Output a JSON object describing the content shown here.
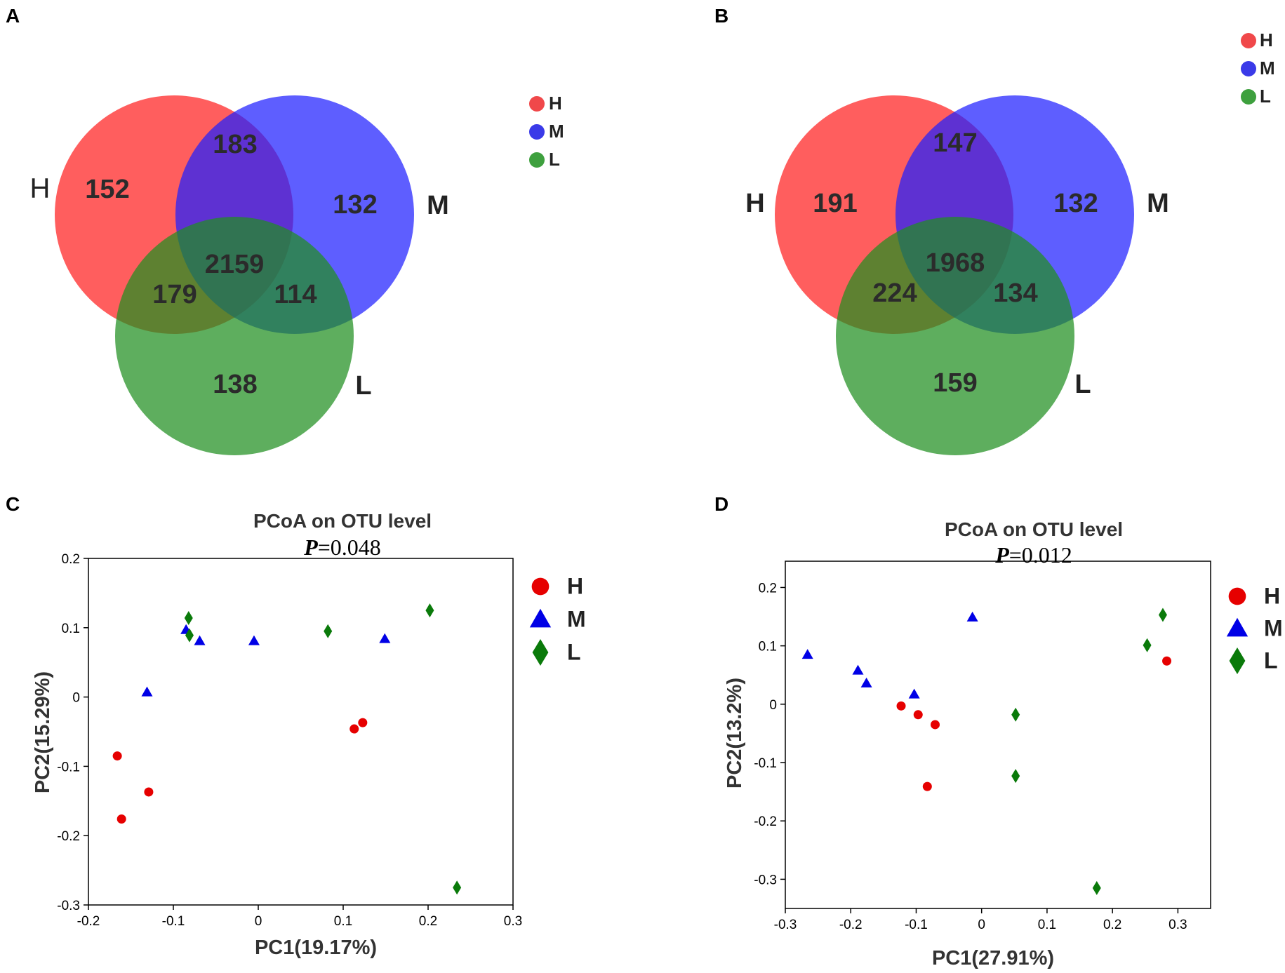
{
  "panels": {
    "A": {
      "letter": "A",
      "type": "venn",
      "set_labels": {
        "H": "H",
        "M": "M",
        "L": "L"
      },
      "regions": {
        "H_only": "152",
        "M_only": "132",
        "L_only": "138",
        "HM": "183",
        "HL": "179",
        "ML": "114",
        "HML": "2159"
      },
      "legend": [
        {
          "label": "H",
          "color": "#f0484a"
        },
        {
          "label": "M",
          "color": "#3a3ae8"
        },
        {
          "label": "L",
          "color": "#3ea03e"
        }
      ]
    },
    "B": {
      "letter": "B",
      "type": "venn",
      "set_labels": {
        "H": "H",
        "M": "M",
        "L": "L"
      },
      "regions": {
        "H_only": "191",
        "M_only": "132",
        "L_only": "159",
        "HM": "147",
        "HL": "224",
        "ML": "134",
        "HML": "1968"
      },
      "legend": [
        {
          "label": "H",
          "color": "#f0484a"
        },
        {
          "label": "M",
          "color": "#3a3ae8"
        },
        {
          "label": "L",
          "color": "#3ea03e"
        }
      ]
    }
  },
  "colors": {
    "H_circle": "#ff2020",
    "M_circle": "#2020ff",
    "L_circle": "#208f20",
    "H_point": "#e60000",
    "M_point": "#0000e6",
    "L_point": "#0a7a0a"
  },
  "chart_data": [
    {
      "letter": "C",
      "type": "scatter",
      "title": "PCoA on OTU level",
      "subtitle_italic": "P",
      "subtitle_rest": "=0.048",
      "xlabel": "PC1(19.17%)",
      "ylabel": "PC2(15.29%)",
      "xlim": [
        -0.2,
        0.3
      ],
      "ylim": [
        -0.3,
        0.2
      ],
      "xticks": [
        -0.2,
        -0.1,
        0,
        0.1,
        0.2,
        0.3
      ],
      "yticks": [
        -0.3,
        -0.2,
        -0.1,
        0,
        0.1,
        0.2
      ],
      "xtick_labels": [
        "-0.2",
        "-0.1",
        "0",
        "0.1",
        "0.2",
        "0.3"
      ],
      "ytick_labels": [
        "-0.3",
        "-0.2",
        "-0.1",
        "0",
        "0.1",
        "0.2"
      ],
      "legend_position": "right",
      "series": [
        {
          "name": "H",
          "marker": "circle",
          "points": [
            [
              -0.166,
              -0.085
            ],
            [
              -0.161,
              -0.176
            ],
            [
              -0.129,
              -0.137
            ],
            [
              0.113,
              -0.046
            ],
            [
              0.123,
              -0.037
            ]
          ]
        },
        {
          "name": "M",
          "marker": "triangle",
          "points": [
            [
              -0.131,
              0.007
            ],
            [
              -0.085,
              0.097
            ],
            [
              -0.069,
              0.081
            ],
            [
              -0.005,
              0.081
            ],
            [
              0.149,
              0.084
            ]
          ]
        },
        {
          "name": "L",
          "marker": "diamond",
          "points": [
            [
              -0.082,
              0.114
            ],
            [
              -0.081,
              0.089
            ],
            [
              0.082,
              0.095
            ],
            [
              0.202,
              0.125
            ],
            [
              0.234,
              -0.275
            ]
          ]
        }
      ]
    },
    {
      "letter": "D",
      "type": "scatter",
      "title": "PCoA on OTU level",
      "subtitle_italic": "P",
      "subtitle_rest": "=0.012",
      "xlabel": "PC1(27.91%)",
      "ylabel": "PC2(13.2%)",
      "xlim": [
        -0.3,
        0.35
      ],
      "ylim": [
        -0.35,
        0.245
      ],
      "xticks": [
        -0.3,
        -0.2,
        -0.1,
        0,
        0.1,
        0.2,
        0.3
      ],
      "yticks": [
        -0.3,
        -0.2,
        -0.1,
        0,
        0.1,
        0.2
      ],
      "xtick_labels": [
        "-0.3",
        "-0.2",
        "-0.1",
        "0",
        "0.1",
        "0.2",
        "0.3"
      ],
      "ytick_labels": [
        "-0.3",
        "-0.2",
        "-0.1",
        "0",
        "0.1",
        "0.2"
      ],
      "legend_position": "right",
      "series": [
        {
          "name": "H",
          "marker": "circle",
          "points": [
            [
              -0.123,
              -0.003
            ],
            [
              -0.097,
              -0.018
            ],
            [
              -0.071,
              -0.035
            ],
            [
              -0.083,
              -0.141
            ],
            [
              0.283,
              0.074
            ]
          ]
        },
        {
          "name": "M",
          "marker": "triangle",
          "points": [
            [
              -0.266,
              0.085
            ],
            [
              -0.189,
              0.058
            ],
            [
              -0.176,
              0.036
            ],
            [
              -0.103,
              0.017
            ],
            [
              -0.014,
              0.149
            ]
          ]
        },
        {
          "name": "L",
          "marker": "diamond",
          "points": [
            [
              0.052,
              -0.018
            ],
            [
              0.052,
              -0.123
            ],
            [
              0.176,
              -0.315
            ],
            [
              0.253,
              0.101
            ],
            [
              0.277,
              0.153
            ]
          ]
        }
      ]
    }
  ]
}
